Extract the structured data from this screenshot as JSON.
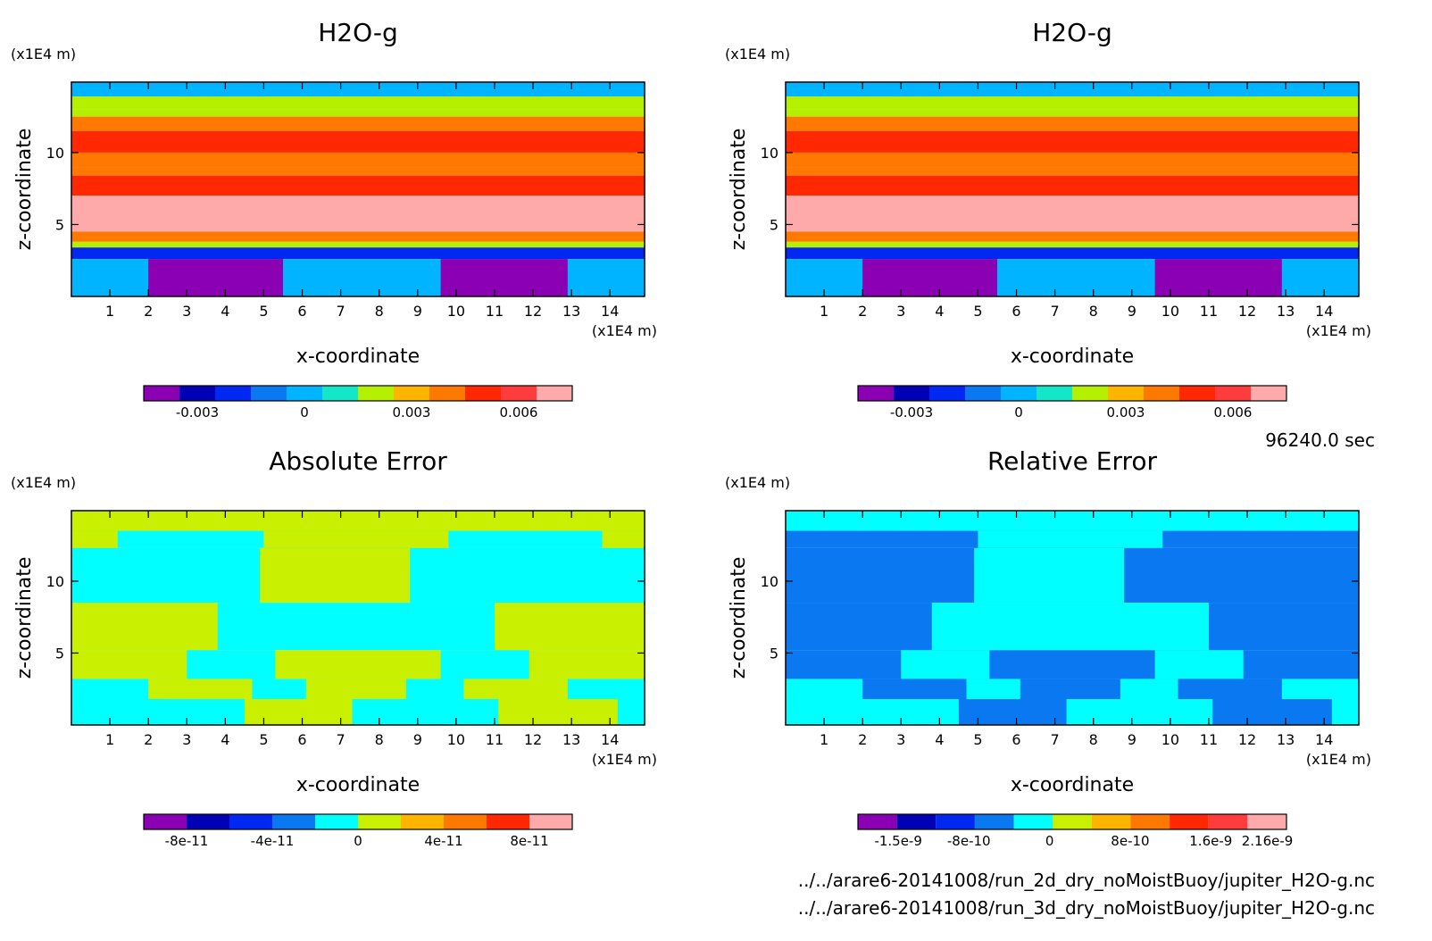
{
  "figure": {
    "time_label": "96240.0 sec",
    "files": [
      "../../arare6-20141008/run_2d_dry_noMoistBuoy/jupiter_H2O-g.nc",
      "../../arare6-20141008/run_3d_dry_noMoistBuoy/jupiter_H2O-g.nc"
    ]
  },
  "chart_data": [
    {
      "type": "heatmap",
      "title": "H2O-g",
      "xlabel": "x-coordinate",
      "ylabel": "z-coordinate",
      "x_unit": "(x1E4 m)",
      "y_unit": "(x1E4 m)",
      "xlim": [
        0,
        14.9
      ],
      "ylim": [
        0,
        14.9
      ],
      "x_ticks": [
        1,
        2,
        3,
        4,
        5,
        6,
        7,
        8,
        9,
        10,
        11,
        12,
        13,
        14
      ],
      "y_ticks": [
        5,
        10
      ],
      "colorbar": {
        "colors": [
          "#8c00b4",
          "#0000b4",
          "#0028f0",
          "#0a78f0",
          "#00b4ff",
          "#14e6c8",
          "#b4f000",
          "#ffb400",
          "#ff7800",
          "#ff2800",
          "#ff3c3c",
          "#ffaaaa"
        ],
        "tick_labels": [
          "-0.003",
          "0",
          "0.003",
          "0.006"
        ],
        "tick_values": [
          -0.003,
          0,
          0.003,
          0.006
        ],
        "vmin": -0.0045,
        "vmax": 0.0075
      },
      "field": [
        {
          "z": [
            13.9,
            14.9
          ],
          "value": -0.0005,
          "tiles": [
            {
              "x": [
                2.75,
                5.0
              ],
              "value": 0.0005
            },
            {
              "x": [
                10.1,
                12.35
              ],
              "value": 0.0005
            }
          ]
        },
        {
          "z": [
            13.0,
            13.9
          ],
          "value": 0.0015
        },
        {
          "z": [
            12.5,
            13.0
          ],
          "value": 0.0025
        },
        {
          "z": [
            11.5,
            12.5
          ],
          "value": 0.0045
        },
        {
          "z": [
            10.0,
            11.5
          ],
          "value": 0.0055
        },
        {
          "z": [
            9.0,
            10.0
          ],
          "value": 0.0045
        },
        {
          "z": [
            8.4,
            9.0
          ],
          "value": 0.0035
        },
        {
          "z": [
            7.0,
            8.4
          ],
          "value": 0.0055
        },
        {
          "z": [
            4.5,
            7.0
          ],
          "value": 0.0065
        },
        {
          "z": [
            3.8,
            4.5
          ],
          "value": 0.0045
        },
        {
          "z": [
            3.4,
            3.8
          ],
          "value": 0.0015
        },
        {
          "z": [
            2.6,
            3.4
          ],
          "value": -0.0015
        },
        {
          "z": [
            0.0,
            2.6
          ],
          "value": -0.0005,
          "tiles": [
            {
              "x": [
                2.0,
                5.5
              ],
              "value": -0.0035
            },
            {
              "x": [
                9.6,
                12.9
              ],
              "value": -0.0035
            }
          ]
        }
      ]
    },
    {
      "type": "heatmap",
      "title": "H2O-g",
      "xlabel": "x-coordinate",
      "ylabel": "z-coordinate",
      "x_unit": "(x1E4 m)",
      "y_unit": "(x1E4 m)",
      "xlim": [
        0,
        14.9
      ],
      "ylim": [
        0,
        14.9
      ],
      "x_ticks": [
        1,
        2,
        3,
        4,
        5,
        6,
        7,
        8,
        9,
        10,
        11,
        12,
        13,
        14
      ],
      "y_ticks": [
        5,
        10
      ],
      "colorbar": {
        "colors": [
          "#8c00b4",
          "#0000b4",
          "#0028f0",
          "#0a78f0",
          "#00b4ff",
          "#14e6c8",
          "#b4f000",
          "#ffb400",
          "#ff7800",
          "#ff2800",
          "#ff3c3c",
          "#ffaaaa"
        ],
        "tick_labels": [
          "-0.003",
          "0",
          "0.003",
          "0.006"
        ],
        "tick_values": [
          -0.003,
          0,
          0.003,
          0.006
        ],
        "vmin": -0.0045,
        "vmax": 0.0075
      },
      "field": [
        {
          "z": [
            13.9,
            14.9
          ],
          "value": -0.0005,
          "tiles": [
            {
              "x": [
                2.75,
                5.0
              ],
              "value": 0.0005
            },
            {
              "x": [
                10.1,
                12.35
              ],
              "value": 0.0005
            }
          ]
        },
        {
          "z": [
            13.0,
            13.9
          ],
          "value": 0.0015
        },
        {
          "z": [
            12.5,
            13.0
          ],
          "value": 0.0025
        },
        {
          "z": [
            11.5,
            12.5
          ],
          "value": 0.0045
        },
        {
          "z": [
            10.0,
            11.5
          ],
          "value": 0.0055
        },
        {
          "z": [
            9.0,
            10.0
          ],
          "value": 0.0045
        },
        {
          "z": [
            8.4,
            9.0
          ],
          "value": 0.0035
        },
        {
          "z": [
            7.0,
            8.4
          ],
          "value": 0.0055
        },
        {
          "z": [
            4.5,
            7.0
          ],
          "value": 0.0065
        },
        {
          "z": [
            3.8,
            4.5
          ],
          "value": 0.0045
        },
        {
          "z": [
            3.4,
            3.8
          ],
          "value": 0.0015
        },
        {
          "z": [
            2.6,
            3.4
          ],
          "value": -0.0015
        },
        {
          "z": [
            0.0,
            2.6
          ],
          "value": -0.0005,
          "tiles": [
            {
              "x": [
                2.0,
                5.5
              ],
              "value": -0.0035
            },
            {
              "x": [
                9.6,
                12.9
              ],
              "value": -0.0035
            }
          ]
        }
      ]
    },
    {
      "type": "heatmap",
      "title": "Absolute Error",
      "xlabel": "x-coordinate",
      "ylabel": "z-coordinate",
      "x_unit": "(x1E4 m)",
      "y_unit": "(x1E4 m)",
      "xlim": [
        0,
        14.9
      ],
      "ylim": [
        0,
        14.9
      ],
      "x_ticks": [
        1,
        2,
        3,
        4,
        5,
        6,
        7,
        8,
        9,
        10,
        11,
        12,
        13,
        14
      ],
      "y_ticks": [
        5,
        10
      ],
      "colorbar": {
        "colors": [
          "#8c00b4",
          "#0000b4",
          "#0028f0",
          "#0a78f0",
          "#00ffff",
          "#c8f000",
          "#ffb400",
          "#ff7800",
          "#ff2800",
          "#ffaaaa"
        ],
        "tick_labels": [
          "-8e-11",
          "-4e-11",
          "0",
          "4e-11",
          "8e-11"
        ],
        "tick_values": [
          -8e-11,
          -4e-11,
          0,
          4e-11,
          8e-11
        ],
        "vmin": -1e-10,
        "vmax": 1e-10
      },
      "field": [
        {
          "z": [
            13.5,
            14.9
          ],
          "value": 1e-11
        },
        {
          "z": [
            12.3,
            13.5
          ],
          "value": -1e-11,
          "tiles": [
            {
              "x": [
                0.0,
                1.2
              ],
              "value": 1e-11
            },
            {
              "x": [
                5.0,
                9.8
              ],
              "value": 1e-11
            },
            {
              "x": [
                13.8,
                14.9
              ],
              "value": 1e-11
            }
          ]
        },
        {
          "z": [
            8.5,
            12.3
          ],
          "value": -1e-11,
          "tiles": [
            {
              "x": [
                4.9,
                8.8
              ],
              "value": 1e-11
            }
          ]
        },
        {
          "z": [
            5.2,
            8.5
          ],
          "value": -1e-11,
          "tiles": [
            {
              "x": [
                0.0,
                3.8
              ],
              "value": 1e-11
            },
            {
              "x": [
                11.0,
                14.9
              ],
              "value": 1e-11
            }
          ]
        },
        {
          "z": [
            3.2,
            5.2
          ],
          "value": 1e-11,
          "tiles": [
            {
              "x": [
                3.0,
                5.3
              ],
              "value": -1e-11
            },
            {
              "x": [
                9.6,
                11.9
              ],
              "value": -1e-11
            }
          ]
        },
        {
          "z": [
            1.8,
            3.2
          ],
          "value": -1e-11,
          "tiles": [
            {
              "x": [
                2.0,
                4.7
              ],
              "value": 1e-11
            },
            {
              "x": [
                6.1,
                8.7
              ],
              "value": 1e-11
            },
            {
              "x": [
                10.2,
                12.9
              ],
              "value": 1e-11
            }
          ]
        },
        {
          "z": [
            0.0,
            1.8
          ],
          "value": -1e-11,
          "tiles": [
            {
              "x": [
                4.5,
                7.3
              ],
              "value": 1e-11
            },
            {
              "x": [
                11.1,
                14.2
              ],
              "value": 1e-11
            }
          ]
        }
      ]
    },
    {
      "type": "heatmap",
      "title": "Relative Error",
      "xlabel": "x-coordinate",
      "ylabel": "z-coordinate",
      "x_unit": "(x1E4 m)",
      "y_unit": "(x1E4 m)",
      "xlim": [
        0,
        14.9
      ],
      "ylim": [
        0,
        14.9
      ],
      "x_ticks": [
        1,
        2,
        3,
        4,
        5,
        6,
        7,
        8,
        9,
        10,
        11,
        12,
        13,
        14
      ],
      "y_ticks": [
        5,
        10
      ],
      "colorbar": {
        "colors": [
          "#8c00b4",
          "#0000b4",
          "#0028f0",
          "#0a78f0",
          "#00ffff",
          "#c8f000",
          "#ffb400",
          "#ff7800",
          "#ff2800",
          "#ff3c3c",
          "#ffaaaa"
        ],
        "tick_labels": [
          "-1.5e-9",
          "-8e-10",
          "0",
          "8e-10",
          "1.6e-9",
          "2.16e-9"
        ],
        "tick_values": [
          -1.5e-09,
          -8e-10,
          0,
          8e-10,
          1.6e-09,
          2.16e-09
        ],
        "vmin": -1.9e-09,
        "vmax": 2.35e-09
      },
      "field": [
        {
          "z": [
            13.5,
            14.9
          ],
          "value": -2e-10
        },
        {
          "z": [
            12.3,
            13.5
          ],
          "value": -5e-10,
          "tiles": [
            {
              "x": [
                5.0,
                9.8
              ],
              "value": -2e-10
            }
          ]
        },
        {
          "z": [
            8.5,
            12.3
          ],
          "value": -5e-10,
          "tiles": [
            {
              "x": [
                4.9,
                8.8
              ],
              "value": -2e-10
            }
          ]
        },
        {
          "z": [
            5.2,
            8.5
          ],
          "value": -2e-10,
          "tiles": [
            {
              "x": [
                0.0,
                3.8
              ],
              "value": -5e-10
            },
            {
              "x": [
                11.0,
                14.9
              ],
              "value": -5e-10
            }
          ]
        },
        {
          "z": [
            3.2,
            5.2
          ],
          "value": -5e-10,
          "tiles": [
            {
              "x": [
                3.0,
                5.3
              ],
              "value": -2e-10
            },
            {
              "x": [
                9.6,
                11.9
              ],
              "value": -2e-10
            }
          ]
        },
        {
          "z": [
            1.8,
            3.2
          ],
          "value": -2e-10,
          "tiles": [
            {
              "x": [
                2.0,
                4.7
              ],
              "value": -5e-10
            },
            {
              "x": [
                6.1,
                8.7
              ],
              "value": -5e-10
            },
            {
              "x": [
                10.2,
                12.9
              ],
              "value": -5e-10
            }
          ]
        },
        {
          "z": [
            0.0,
            1.8
          ],
          "value": -2e-10,
          "tiles": [
            {
              "x": [
                4.5,
                7.3
              ],
              "value": -5e-10
            },
            {
              "x": [
                11.1,
                14.2
              ],
              "value": -5e-10
            }
          ]
        }
      ]
    }
  ]
}
